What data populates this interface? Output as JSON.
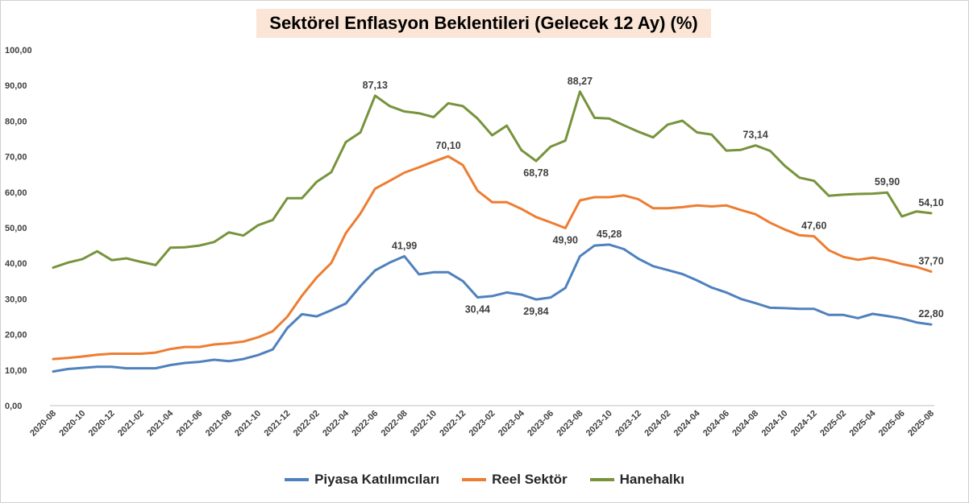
{
  "chart_data": {
    "type": "line",
    "title": "Sektörel Enflasyon Beklentileri (Gelecek 12 Ay) (%)",
    "xlabel": "",
    "ylabel": "",
    "ylim": [
      0,
      100
    ],
    "y_ticks": [
      "0,00",
      "10,00",
      "20,00",
      "30,00",
      "40,00",
      "50,00",
      "60,00",
      "70,00",
      "80,00",
      "90,00",
      "100,00"
    ],
    "grid": false,
    "legend_position": "bottom",
    "x": [
      "2020-08",
      "2020-09",
      "2020-10",
      "2020-11",
      "2020-12",
      "2021-01",
      "2021-02",
      "2021-03",
      "2021-04",
      "2021-05",
      "2021-06",
      "2021-07",
      "2021-08",
      "2021-09",
      "2021-10",
      "2021-11",
      "2021-12",
      "2022-01",
      "2022-02",
      "2022-03",
      "2022-04",
      "2022-05",
      "2022-06",
      "2022-07",
      "2022-08",
      "2022-09",
      "2022-10",
      "2022-11",
      "2022-12",
      "2023-01",
      "2023-02",
      "2023-03",
      "2023-04",
      "2023-05",
      "2023-06",
      "2023-07",
      "2023-08",
      "2023-09",
      "2023-10",
      "2023-11",
      "2023-12",
      "2024-01",
      "2024-02",
      "2024-03",
      "2024-04",
      "2024-05",
      "2024-06",
      "2024-07",
      "2024-08",
      "2024-09",
      "2024-10",
      "2024-11",
      "2024-12",
      "2025-01",
      "2025-02",
      "2025-03",
      "2025-04",
      "2025-05",
      "2025-06",
      "2025-07",
      "2025-08"
    ],
    "x_tick_labels": [
      "2020-08",
      "2020-10",
      "2020-12",
      "2021-02",
      "2021-04",
      "2021-06",
      "2021-08",
      "2021-10",
      "2021-12",
      "2022-02",
      "2022-04",
      "2022-06",
      "2022-08",
      "2022-10",
      "2022-12",
      "2023-02",
      "2023-04",
      "2023-06",
      "2023-08",
      "2023-10",
      "2023-12",
      "2024-02",
      "2024-04",
      "2024-06",
      "2024-08",
      "2024-10",
      "2024-12",
      "2025-02",
      "2025-04",
      "2025-06",
      "2025-08"
    ],
    "series": [
      {
        "name": "Piyasa Katılımcıları",
        "color": "#4f81bd",
        "values": [
          9.6,
          10.3,
          10.6,
          10.9,
          10.9,
          10.5,
          10.5,
          10.5,
          11.4,
          12.0,
          12.3,
          12.9,
          12.5,
          13.1,
          14.2,
          15.8,
          21.8,
          25.7,
          25.1,
          26.8,
          28.7,
          33.6,
          38.0,
          40.2,
          41.99,
          36.9,
          37.5,
          37.5,
          35.0,
          30.44,
          30.8,
          31.8,
          31.2,
          29.84,
          30.4,
          33.1,
          42.0,
          45.0,
          45.28,
          44.0,
          41.3,
          39.2,
          38.1,
          37.0,
          35.2,
          33.2,
          31.8,
          30.0,
          28.8,
          27.5,
          27.4,
          27.2,
          27.2,
          25.5,
          25.5,
          24.6,
          25.8,
          25.2,
          24.5,
          23.4,
          22.8
        ]
      },
      {
        "name": "Reel Sektör",
        "color": "#ed7d31",
        "values": [
          13.1,
          13.4,
          13.8,
          14.3,
          14.6,
          14.6,
          14.6,
          14.9,
          15.9,
          16.5,
          16.5,
          17.2,
          17.5,
          18.0,
          19.2,
          20.9,
          25.0,
          30.9,
          36.0,
          40.1,
          48.5,
          54.0,
          61.0,
          63.2,
          65.5,
          67.0,
          68.6,
          70.1,
          67.6,
          60.4,
          57.2,
          57.2,
          55.3,
          53.0,
          51.5,
          49.9,
          57.7,
          58.6,
          58.6,
          59.1,
          58.0,
          55.5,
          55.5,
          55.8,
          56.3,
          56.0,
          56.3,
          55.0,
          53.8,
          51.4,
          49.5,
          47.9,
          47.6,
          43.7,
          41.8,
          41.0,
          41.6,
          40.9,
          39.8,
          39.0,
          37.7
        ]
      },
      {
        "name": "Hanehalkı",
        "color": "#77933c",
        "values": [
          38.8,
          40.2,
          41.2,
          43.4,
          40.9,
          41.4,
          40.4,
          39.5,
          44.4,
          44.5,
          45.0,
          46.0,
          48.7,
          47.8,
          50.7,
          52.2,
          58.3,
          58.3,
          62.9,
          65.6,
          74.1,
          76.8,
          87.13,
          84.2,
          82.7,
          82.2,
          81.1,
          85.0,
          84.2,
          80.7,
          76.0,
          78.7,
          71.8,
          68.78,
          72.8,
          74.5,
          88.27,
          80.9,
          80.7,
          78.8,
          77.0,
          75.4,
          79.0,
          80.1,
          76.8,
          76.2,
          71.7,
          71.9,
          73.14,
          71.6,
          67.4,
          64.1,
          63.2,
          59.0,
          59.3,
          59.5,
          59.6,
          59.9,
          53.2,
          54.6,
          54.1
        ]
      }
    ],
    "annotations": [
      {
        "series": 0,
        "index": 24,
        "text": "41,99",
        "pos": "above"
      },
      {
        "series": 0,
        "index": 29,
        "text": "30,44",
        "pos": "below"
      },
      {
        "series": 0,
        "index": 33,
        "text": "29,84",
        "pos": "below"
      },
      {
        "series": 0,
        "index": 38,
        "text": "45,28",
        "pos": "above"
      },
      {
        "series": 0,
        "index": 60,
        "text": "22,80",
        "pos": "above"
      },
      {
        "series": 1,
        "index": 27,
        "text": "70,10",
        "pos": "above"
      },
      {
        "series": 1,
        "index": 35,
        "text": "49,90",
        "pos": "below"
      },
      {
        "series": 1,
        "index": 52,
        "text": "47,60",
        "pos": "above"
      },
      {
        "series": 1,
        "index": 60,
        "text": "37,70",
        "pos": "above"
      },
      {
        "series": 2,
        "index": 22,
        "text": "87,13",
        "pos": "above"
      },
      {
        "series": 2,
        "index": 33,
        "text": "68,78",
        "pos": "below"
      },
      {
        "series": 2,
        "index": 36,
        "text": "88,27",
        "pos": "above"
      },
      {
        "series": 2,
        "index": 48,
        "text": "73,14",
        "pos": "above"
      },
      {
        "series": 2,
        "index": 57,
        "text": "59,90",
        "pos": "above"
      },
      {
        "series": 2,
        "index": 60,
        "text": "54,10",
        "pos": "above"
      }
    ]
  }
}
